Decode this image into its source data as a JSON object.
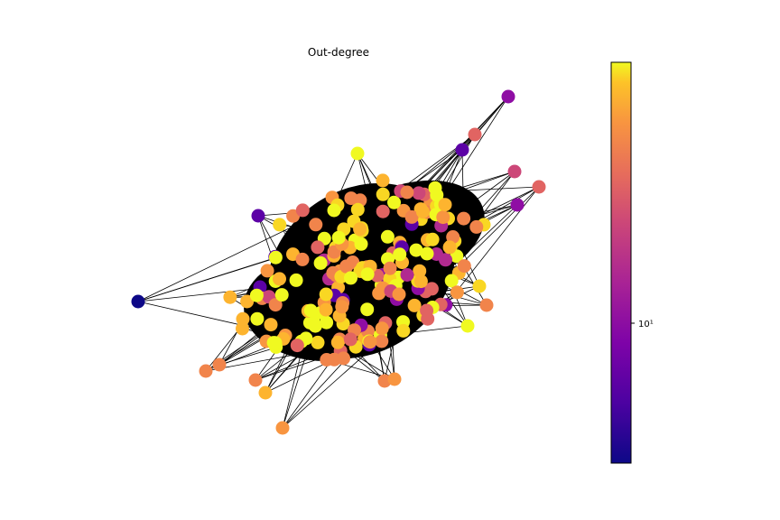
{
  "figure": {
    "title": "Out-degree"
  },
  "colorbar": {
    "colormap": "plasma",
    "scale": "log",
    "tick_labels": [
      "10¹"
    ]
  },
  "graph": {
    "node_color_range": [
      "#0d0887",
      "#f0f921"
    ],
    "edge_color": "#000000"
  }
}
